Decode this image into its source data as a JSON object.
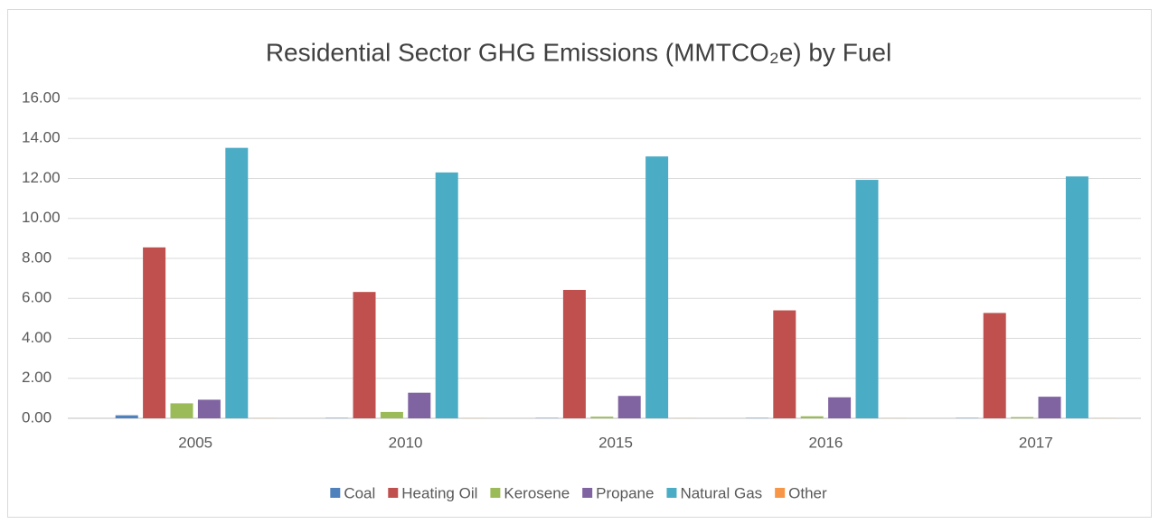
{
  "chart_data": {
    "type": "bar",
    "title": "Residential Sector GHG Emissions (MMTCO₂e) by Fuel",
    "categories": [
      "2005",
      "2010",
      "2015",
      "2016",
      "2017"
    ],
    "series": [
      {
        "name": "Coal",
        "color": "#4f81bd",
        "values": [
          0.15,
          0.02,
          0.02,
          0.02,
          0.02
        ]
      },
      {
        "name": "Heating Oil",
        "color": "#c0504d",
        "values": [
          8.55,
          6.32,
          6.42,
          5.4,
          5.27
        ]
      },
      {
        "name": "Kerosene",
        "color": "#9bbb59",
        "values": [
          0.75,
          0.32,
          0.08,
          0.1,
          0.06
        ]
      },
      {
        "name": "Propane",
        "color": "#8064a2",
        "values": [
          0.93,
          1.28,
          1.12,
          1.05,
          1.08
        ]
      },
      {
        "name": "Natural Gas",
        "color": "#4bacc6",
        "values": [
          13.53,
          12.3,
          13.1,
          11.93,
          12.1
        ]
      },
      {
        "name": "Other",
        "color": "#f79646",
        "values": [
          0.01,
          0.01,
          0.01,
          0.01,
          0.01
        ]
      }
    ],
    "ylim": [
      0,
      16
    ],
    "yticks": [
      {
        "value": 0,
        "label": "0.00"
      },
      {
        "value": 2,
        "label": "2.00"
      },
      {
        "value": 4,
        "label": "4.00"
      },
      {
        "value": 6,
        "label": "6.00"
      },
      {
        "value": 8,
        "label": "8.00"
      },
      {
        "value": 10,
        "label": "10.00"
      },
      {
        "value": 12,
        "label": "12.00"
      },
      {
        "value": 14,
        "label": "14.00"
      },
      {
        "value": 16,
        "label": "16.00"
      }
    ],
    "grid": true,
    "legend": "bottom"
  }
}
